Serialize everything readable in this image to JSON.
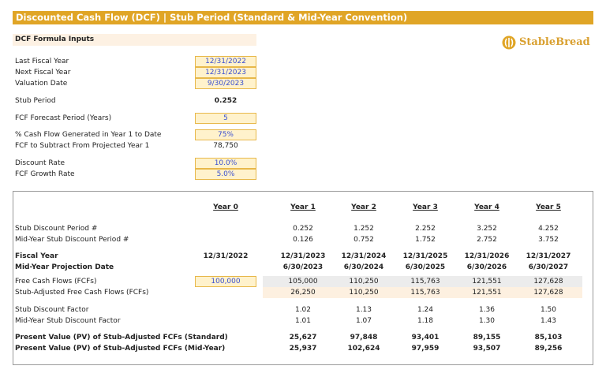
{
  "header": {
    "title": "Discounted Cash Flow (DCF) | Stub Period (Standard & Mid-Year Convention)",
    "logo": "StableBread"
  },
  "inputs": {
    "title": "DCF Formula Inputs",
    "rows": [
      {
        "label": "Last Fiscal Year",
        "value": "12/31/2022",
        "input": true
      },
      {
        "label": "Next Fiscal Year",
        "value": "12/31/2023",
        "input": true
      },
      {
        "label": "Valuation Date",
        "value": "9/30/2023",
        "input": true
      },
      {
        "label": "Stub Period",
        "value": "0.252",
        "input": false
      },
      {
        "label": "FCF Forecast Period (Years)",
        "value": "5",
        "input": true
      },
      {
        "label": "% Cash Flow Generated in Year 1 to Date",
        "value": "75%",
        "input": true
      },
      {
        "label": "FCF to Subtract From Projected Year 1",
        "value": "78,750",
        "input": false
      },
      {
        "label": "Discount Rate",
        "value": "10.0%",
        "input": true
      },
      {
        "label": "FCF Growth Rate",
        "value": "5.0%",
        "input": true
      }
    ]
  },
  "table": {
    "columns": [
      "Year 0",
      "Year 1",
      "Year 2",
      "Year 3",
      "Year 4",
      "Year 5"
    ],
    "rows": [
      {
        "label": "Stub Discount Period #",
        "values": [
          "0.252",
          "1.252",
          "2.252",
          "3.252",
          "4.252"
        ]
      },
      {
        "label": "Mid-Year Stub Discount Period #",
        "values": [
          "0.126",
          "0.752",
          "1.752",
          "2.752",
          "3.752"
        ]
      },
      {
        "label": "Fiscal Year",
        "year0": "12/31/2022",
        "values": [
          "12/31/2023",
          "12/31/2024",
          "12/31/2025",
          "12/31/2026",
          "12/31/2027"
        ]
      },
      {
        "label": "Mid-Year Projection Date",
        "values": [
          "6/30/2023",
          "6/30/2024",
          "6/30/2025",
          "6/30/2026",
          "6/30/2027"
        ]
      },
      {
        "label": "Free Cash Flows (FCFs)",
        "year0": "100,000",
        "values": [
          "105,000",
          "110,250",
          "115,763",
          "121,551",
          "127,628"
        ]
      },
      {
        "label": "Stub-Adjusted Free Cash Flows (FCFs)",
        "values": [
          "26,250",
          "110,250",
          "115,763",
          "121,551",
          "127,628"
        ]
      },
      {
        "label": "Stub Discount Factor",
        "values": [
          "1.02",
          "1.13",
          "1.24",
          "1.36",
          "1.50"
        ]
      },
      {
        "label": "Mid-Year Stub Discount Factor",
        "values": [
          "1.01",
          "1.07",
          "1.18",
          "1.30",
          "1.43"
        ]
      },
      {
        "label": "Present Value (PV) of Stub-Adjusted FCFs (Standard)",
        "values": [
          "25,627",
          "97,848",
          "93,401",
          "89,155",
          "85,103"
        ]
      },
      {
        "label": "Present Value (PV) of Stub-Adjusted FCFs (Mid-Year)",
        "values": [
          "25,937",
          "102,624",
          "97,959",
          "93,507",
          "89,256"
        ]
      }
    ]
  }
}
